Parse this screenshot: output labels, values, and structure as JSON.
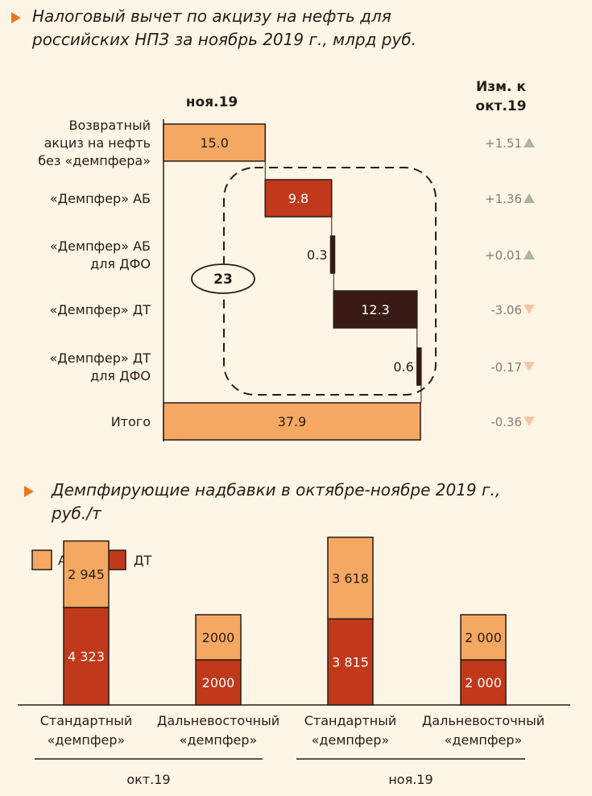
{
  "chart1": {
    "title_line1": "Налоговый вычет по акцизу на нефть для",
    "title_line2": "российских НПЗ за ноябрь 2019 г., млрд руб.",
    "col_header": "ноя.19",
    "change_header_line1": "Изм. к",
    "change_header_line2": "окт.19",
    "circle_label": "23"
  },
  "chart2": {
    "title_line1": "Демпфирующие надбавки в октябре-ноябре 2019 г.,",
    "title_line2": "руб./т"
  },
  "colors": {
    "light": "#f5a862",
    "red": "#c0391b",
    "dark": "#3a1a14",
    "up": "#a9b79e",
    "down": "#f3c7a6"
  },
  "chart_data": [
    {
      "type": "bar",
      "subtype": "waterfall",
      "categories": [
        [
          "Возвратный",
          "акциз на нефть",
          "без «демпфера»"
        ],
        [
          "«Демпфер» АБ"
        ],
        [
          "«Демпфер» АБ",
          "для ДФО"
        ],
        [
          "«Демпфер» ДТ"
        ],
        [
          "«Демпфер» ДТ",
          "для ДФО"
        ],
        [
          "Итого"
        ]
      ],
      "values": [
        15.0,
        9.8,
        0.3,
        12.3,
        0.6,
        37.9
      ],
      "labels": [
        "15.0",
        "9.8",
        "0.3",
        "12.3",
        "0.6",
        "37.9"
      ],
      "fills": [
        "light",
        "red",
        "dark",
        "dark",
        "dark",
        "light"
      ],
      "changes": [
        "+1.51",
        "+1.36",
        "+0.01",
        "-3.06",
        "-0.17",
        "-0.36"
      ],
      "change_dirs": [
        "up",
        "up",
        "up",
        "down",
        "down",
        "down"
      ]
    },
    {
      "type": "bar",
      "subtype": "stacked",
      "legend": [
        "АБ",
        "ДТ"
      ],
      "groups": [
        {
          "label": "окт.19",
          "bars": [
            {
              "name": [
                "Стандартный",
                "«демпфер»"
              ],
              "ab": 2945,
              "dt": 4323,
              "ab_label": "2 945",
              "dt_label": "4 323"
            },
            {
              "name": [
                "Дальневосточный",
                "«демпфер»"
              ],
              "ab": 2000,
              "dt": 2000,
              "ab_label": "2000",
              "dt_label": "2000"
            }
          ]
        },
        {
          "label": "ноя.19",
          "bars": [
            {
              "name": [
                "Стандартный",
                "«демпфер»"
              ],
              "ab": 3618,
              "dt": 3815,
              "ab_label": "3 618",
              "dt_label": "3 815"
            },
            {
              "name": [
                "Дальневосточный",
                "«демпфер»"
              ],
              "ab": 2000,
              "dt": 2000,
              "ab_label": "2 000",
              "dt_label": "2 000"
            }
          ]
        }
      ]
    }
  ]
}
